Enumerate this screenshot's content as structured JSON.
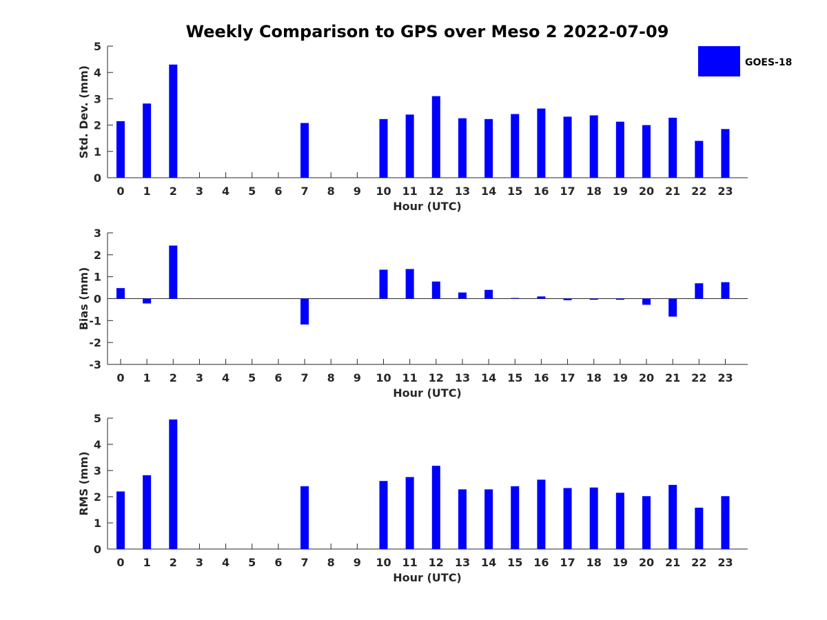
{
  "colors": {
    "bar": "#0000ff",
    "axis": "#262626",
    "background": "#ffffff"
  },
  "chart_data": {
    "type": "bar",
    "title": "Weekly Comparison to GPS over Meso 2 2022-07-09",
    "legend": {
      "label": "GOES-18",
      "placement": "top-right"
    },
    "categories": [
      "0",
      "1",
      "2",
      "3",
      "4",
      "5",
      "6",
      "7",
      "8",
      "9",
      "10",
      "11",
      "12",
      "13",
      "14",
      "15",
      "16",
      "17",
      "18",
      "19",
      "20",
      "21",
      "22",
      "23"
    ],
    "panels": [
      {
        "id": "std",
        "xlabel": "Hour (UTC)",
        "ylabel": "Std. Dev. (mm)",
        "ylim": [
          0,
          5
        ],
        "yticks": [
          "0",
          "1",
          "2",
          "3",
          "4",
          "5"
        ],
        "series": [
          {
            "name": "GOES-18",
            "values": [
              2.15,
              2.82,
              4.3,
              null,
              null,
              null,
              null,
              2.08,
              null,
              null,
              2.23,
              2.4,
              3.1,
              2.26,
              2.23,
              2.42,
              2.63,
              2.32,
              2.37,
              2.13,
              2.0,
              2.28,
              1.4,
              1.85
            ]
          }
        ]
      },
      {
        "id": "bias",
        "xlabel": "Hour (UTC)",
        "ylabel": "Bias (mm)",
        "ylim": [
          -3,
          3
        ],
        "yticks": [
          "-3",
          "-2",
          "-1",
          "0",
          "1",
          "2",
          "3"
        ],
        "series": [
          {
            "name": "GOES-18",
            "values": [
              0.48,
              -0.22,
              2.42,
              null,
              null,
              null,
              null,
              -1.18,
              null,
              null,
              1.32,
              1.35,
              0.78,
              0.28,
              0.4,
              0.03,
              0.1,
              -0.07,
              -0.05,
              -0.05,
              -0.28,
              -0.82,
              0.7,
              0.75
            ]
          }
        ]
      },
      {
        "id": "rms",
        "xlabel": "Hour (UTC)",
        "ylabel": "RMS (mm)",
        "ylim": [
          0,
          5
        ],
        "yticks": [
          "0",
          "1",
          "2",
          "3",
          "4",
          "5"
        ],
        "series": [
          {
            "name": "GOES-18",
            "values": [
              2.2,
              2.82,
              4.95,
              null,
              null,
              null,
              null,
              2.4,
              null,
              null,
              2.6,
              2.75,
              3.18,
              2.28,
              2.28,
              2.4,
              2.65,
              2.33,
              2.35,
              2.15,
              2.02,
              2.45,
              1.58,
              2.02
            ]
          }
        ]
      }
    ]
  }
}
